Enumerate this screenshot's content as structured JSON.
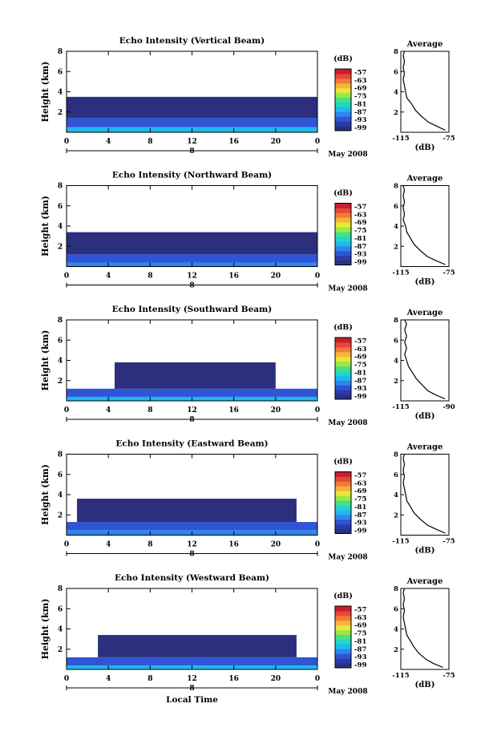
{
  "colors": {
    "scale": [
      "#2b2f7d",
      "#2b3aa8",
      "#2f54d6",
      "#2f85ee",
      "#1fb7f0",
      "#21d6c8",
      "#45e08a",
      "#9ce844",
      "#e7e83a",
      "#f6b53a",
      "#f37b35",
      "#e7473b",
      "#c61f2a"
    ],
    "line": "#000000"
  },
  "shared": {
    "ylabel": "Height (km)",
    "date_label": "May 2008",
    "xlabel": "Local Time",
    "colorbar_unit": "(dB)",
    "avg_title": "Average",
    "avg_xlabel": "(dB)"
  },
  "chart_data": [
    {
      "type": "heatmap",
      "title": "Echo Intensity (Vertical Beam)",
      "ylabel": "Height (km)",
      "x_ticks": [
        "0",
        "4",
        "8",
        "12",
        "16",
        "20",
        "0"
      ],
      "x_day": "8",
      "y_ticks": [
        "2",
        "4",
        "6",
        "8"
      ],
      "ylim": [
        0,
        8
      ],
      "xlim": [
        0,
        24
      ],
      "colorbar": {
        "ticks": [
          "-57",
          "-63",
          "-69",
          "-75",
          "-81",
          "-87",
          "-93",
          "-99"
        ],
        "range": [
          -99,
          -57
        ]
      },
      "layers": [
        {
          "t": [
            0,
            24
          ],
          "h": [
            0.0,
            0.5
          ],
          "level": -84
        },
        {
          "t": [
            0,
            24
          ],
          "h": [
            0.5,
            1.4
          ],
          "level": -93
        },
        {
          "t": [
            0,
            24
          ],
          "h": [
            1.4,
            3.5
          ],
          "level": -99
        }
      ],
      "average": {
        "title": "Average",
        "xlabel": "(dB)",
        "x_ticks": [
          "-115",
          "-75"
        ],
        "xlim": [
          -115,
          -75
        ],
        "y_ticks": [
          "2",
          "4",
          "6",
          "8"
        ],
        "ylim": [
          0,
          8
        ],
        "profile": [
          [
            0.2,
            -78
          ],
          [
            0.6,
            -85
          ],
          [
            1.0,
            -92
          ],
          [
            1.6,
            -98
          ],
          [
            2.2,
            -103
          ],
          [
            2.8,
            -106
          ],
          [
            3.4,
            -110
          ],
          [
            4.0,
            -111
          ],
          [
            4.6,
            -112
          ],
          [
            5.2,
            -113
          ],
          [
            5.8,
            -112
          ],
          [
            6.4,
            -113
          ],
          [
            7.0,
            -112
          ],
          [
            7.6,
            -113
          ],
          [
            8.0,
            -112
          ]
        ]
      }
    },
    {
      "type": "heatmap",
      "title": "Echo Intensity (Northward Beam)",
      "ylabel": "Height (km)",
      "x_ticks": [
        "0",
        "4",
        "8",
        "12",
        "16",
        "20",
        "0"
      ],
      "x_day": "8",
      "y_ticks": [
        "2",
        "4",
        "6",
        "8"
      ],
      "ylim": [
        0,
        8
      ],
      "xlim": [
        0,
        24
      ],
      "colorbar": {
        "ticks": [
          "-57",
          "-63",
          "-69",
          "-75",
          "-81",
          "-87",
          "-93",
          "-99"
        ],
        "range": [
          -99,
          -57
        ]
      },
      "layers": [
        {
          "t": [
            0,
            24
          ],
          "h": [
            0.0,
            0.4
          ],
          "level": -87
        },
        {
          "t": [
            0,
            24
          ],
          "h": [
            0.4,
            1.2
          ],
          "level": -93
        },
        {
          "t": [
            0,
            24
          ],
          "h": [
            1.2,
            3.4
          ],
          "level": -99
        }
      ],
      "average": {
        "title": "Average",
        "xlabel": "(dB)",
        "x_ticks": [
          "-115",
          "-75"
        ],
        "xlim": [
          -115,
          -75
        ],
        "y_ticks": [
          "2",
          "4",
          "6",
          "8"
        ],
        "ylim": [
          0,
          8
        ],
        "profile": [
          [
            0.2,
            -78
          ],
          [
            0.6,
            -86
          ],
          [
            1.0,
            -93
          ],
          [
            1.6,
            -99
          ],
          [
            2.2,
            -104
          ],
          [
            2.8,
            -107
          ],
          [
            3.4,
            -110
          ],
          [
            4.0,
            -111
          ],
          [
            4.6,
            -113
          ],
          [
            5.2,
            -112
          ],
          [
            5.8,
            -113
          ],
          [
            6.4,
            -112
          ],
          [
            7.0,
            -113
          ],
          [
            7.6,
            -112
          ],
          [
            8.0,
            -113
          ]
        ]
      }
    },
    {
      "type": "heatmap",
      "title": "Echo Intensity (Southward Beam)",
      "ylabel": "Height (km)",
      "x_ticks": [
        "0",
        "4",
        "8",
        "12",
        "16",
        "20",
        "0"
      ],
      "x_day": "8",
      "y_ticks": [
        "2",
        "4",
        "6",
        "8"
      ],
      "ylim": [
        0,
        8
      ],
      "xlim": [
        0,
        24
      ],
      "colorbar": {
        "ticks": [
          "-57",
          "-63",
          "-69",
          "-75",
          "-81",
          "-87",
          "-93",
          "-99"
        ],
        "range": [
          -99,
          -57
        ]
      },
      "layers": [
        {
          "t": [
            0,
            24
          ],
          "h": [
            0.0,
            0.4
          ],
          "level": -84
        },
        {
          "t": [
            0,
            24
          ],
          "h": [
            0.4,
            1.2
          ],
          "level": -93
        },
        {
          "t": [
            4.6,
            20
          ],
          "h": [
            1.2,
            3.8
          ],
          "level": -99
        }
      ],
      "average": {
        "title": "Average",
        "xlabel": "(dB)",
        "x_ticks": [
          "-115",
          "-90"
        ],
        "xlim": [
          -115,
          -90
        ],
        "y_ticks": [
          "2",
          "4",
          "6",
          "8"
        ],
        "ylim": [
          0,
          8
        ],
        "profile": [
          [
            0.2,
            -92
          ],
          [
            0.6,
            -97
          ],
          [
            1.0,
            -101
          ],
          [
            1.6,
            -104
          ],
          [
            2.2,
            -107
          ],
          [
            2.8,
            -109
          ],
          [
            3.4,
            -111
          ],
          [
            4.0,
            -112
          ],
          [
            4.6,
            -113
          ],
          [
            5.2,
            -112
          ],
          [
            5.8,
            -113
          ],
          [
            6.4,
            -112
          ],
          [
            7.0,
            -113
          ],
          [
            7.6,
            -112
          ],
          [
            8.0,
            -113
          ]
        ]
      }
    },
    {
      "type": "heatmap",
      "title": "Echo Intensity (Eastward Beam)",
      "ylabel": "Height (km)",
      "x_ticks": [
        "0",
        "4",
        "8",
        "12",
        "16",
        "20",
        "0"
      ],
      "x_day": "8",
      "y_ticks": [
        "2",
        "4",
        "6",
        "8"
      ],
      "ylim": [
        0,
        8
      ],
      "xlim": [
        0,
        24
      ],
      "colorbar": {
        "ticks": [
          "-57",
          "-63",
          "-69",
          "-75",
          "-81",
          "-87",
          "-93",
          "-99"
        ],
        "range": [
          -99,
          -57
        ]
      },
      "layers": [
        {
          "t": [
            0,
            24
          ],
          "h": [
            0.0,
            0.5
          ],
          "level": -87
        },
        {
          "t": [
            0,
            24
          ],
          "h": [
            0.5,
            1.3
          ],
          "level": -93
        },
        {
          "t": [
            1,
            22
          ],
          "h": [
            1.3,
            3.6
          ],
          "level": -99
        }
      ],
      "average": {
        "title": "Average",
        "xlabel": "(dB)",
        "x_ticks": [
          "-115",
          "-75"
        ],
        "xlim": [
          -115,
          -75
        ],
        "y_ticks": [
          "2",
          "4",
          "6",
          "8"
        ],
        "ylim": [
          0,
          8
        ],
        "profile": [
          [
            0.2,
            -78
          ],
          [
            0.6,
            -86
          ],
          [
            1.0,
            -93
          ],
          [
            1.6,
            -99
          ],
          [
            2.2,
            -104
          ],
          [
            2.8,
            -107
          ],
          [
            3.4,
            -110
          ],
          [
            4.0,
            -111
          ],
          [
            4.6,
            -112
          ],
          [
            5.2,
            -113
          ],
          [
            5.8,
            -112
          ],
          [
            6.4,
            -113
          ],
          [
            7.0,
            -112
          ],
          [
            7.6,
            -113
          ],
          [
            8.0,
            -112
          ]
        ]
      }
    },
    {
      "type": "heatmap",
      "title": "Echo Intensity (Westward Beam)",
      "ylabel": "Height (km)",
      "x_ticks": [
        "0",
        "4",
        "8",
        "12",
        "16",
        "20",
        "0"
      ],
      "x_day": "8",
      "xlabel": "Local Time",
      "y_ticks": [
        "2",
        "4",
        "6",
        "8"
      ],
      "ylim": [
        0,
        8
      ],
      "xlim": [
        0,
        24
      ],
      "colorbar": {
        "ticks": [
          "-57",
          "-63",
          "-69",
          "-75",
          "-81",
          "-87",
          "-93",
          "-99"
        ],
        "range": [
          -99,
          -57
        ]
      },
      "layers": [
        {
          "t": [
            0,
            24
          ],
          "h": [
            0.0,
            0.4
          ],
          "level": -84
        },
        {
          "t": [
            0,
            24
          ],
          "h": [
            0.4,
            1.2
          ],
          "level": -93
        },
        {
          "t": [
            3,
            22
          ],
          "h": [
            1.2,
            3.4
          ],
          "level": -99
        }
      ],
      "average": {
        "title": "Average",
        "xlabel": "(dB)",
        "x_ticks": [
          "-115",
          "-75"
        ],
        "xlim": [
          -115,
          -75
        ],
        "y_ticks": [
          "2",
          "4",
          "6",
          "8"
        ],
        "ylim": [
          0,
          8
        ],
        "profile": [
          [
            0.2,
            -80
          ],
          [
            0.6,
            -88
          ],
          [
            1.0,
            -94
          ],
          [
            1.6,
            -100
          ],
          [
            2.2,
            -104
          ],
          [
            2.8,
            -107
          ],
          [
            3.4,
            -110
          ],
          [
            4.0,
            -111
          ],
          [
            4.6,
            -112
          ],
          [
            5.2,
            -113
          ],
          [
            5.8,
            -112
          ],
          [
            6.4,
            -113
          ],
          [
            7.0,
            -112
          ],
          [
            7.6,
            -113
          ],
          [
            8.0,
            -112
          ]
        ]
      }
    }
  ]
}
